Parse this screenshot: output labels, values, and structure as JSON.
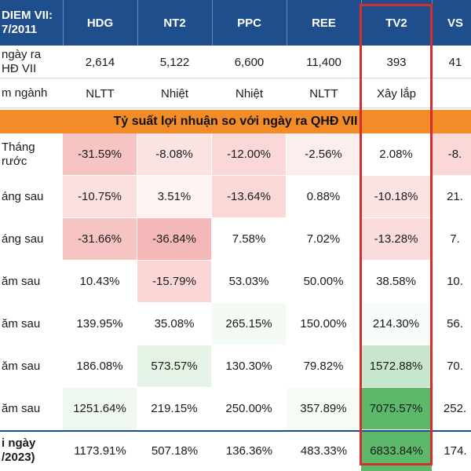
{
  "columns": {
    "header_label": [
      "DIEM VII:",
      "7/2011"
    ],
    "tickers": [
      "HDG",
      "NT2",
      "PPC",
      "REE",
      "TV2",
      "VS"
    ]
  },
  "info_rows": [
    {
      "label": [
        "ngày ra",
        "HĐ VII"
      ],
      "values": [
        "2,614",
        "5,122",
        "6,600",
        "11,400",
        "393",
        "41"
      ]
    },
    {
      "label": [
        "m ngành"
      ],
      "values": [
        "NLTT",
        "Nhiệt",
        "Nhiệt",
        "NLTT",
        "Xây lắp",
        ""
      ]
    }
  ],
  "banner": "Tỷ suất lợi nhuận so với ngày ra QHĐ VII",
  "return_rows": [
    {
      "label": [
        "Tháng",
        "rước"
      ],
      "values": [
        "-31.59%",
        "-8.08%",
        "-12.00%",
        "-2.56%",
        "2.08%",
        "-8."
      ],
      "colors": [
        "#f7c4c4",
        "#fce3e3",
        "#fbd8d8",
        "#fdeeee",
        "#ffffff",
        "#fbd8d8"
      ]
    },
    {
      "label": [
        "áng sau"
      ],
      "values": [
        "-10.75%",
        "3.51%",
        "-13.64%",
        "0.88%",
        "-10.18%",
        "21."
      ],
      "colors": [
        "#fce0e0",
        "#fff4f4",
        "#fbd8d8",
        "#ffffff",
        "#fce3e3",
        "#ffffff"
      ]
    },
    {
      "label": [
        "áng sau"
      ],
      "values": [
        "-31.66%",
        "-36.84%",
        "7.58%",
        "7.02%",
        "-13.28%",
        "7."
      ],
      "colors": [
        "#f7c4c4",
        "#f5b8b8",
        "#ffffff",
        "#ffffff",
        "#fbdcdc",
        "#ffffff"
      ]
    },
    {
      "label": [
        "ăm sau"
      ],
      "values": [
        "10.43%",
        "-15.79%",
        "53.03%",
        "50.00%",
        "38.58%",
        "10."
      ],
      "colors": [
        "#ffffff",
        "#fbd6d6",
        "#ffffff",
        "#ffffff",
        "#ffffff",
        "#ffffff"
      ]
    },
    {
      "label": [
        "ăm sau"
      ],
      "values": [
        "139.95%",
        "35.08%",
        "265.15%",
        "150.00%",
        "214.30%",
        "56."
      ],
      "colors": [
        "#ffffff",
        "#ffffff",
        "#f4fbf5",
        "#ffffff",
        "#f8fcf8",
        "#ffffff"
      ]
    },
    {
      "label": [
        "ăm sau"
      ],
      "values": [
        "186.08%",
        "573.57%",
        "130.30%",
        "79.82%",
        "1572.88%",
        "70."
      ],
      "colors": [
        "#ffffff",
        "#e4f3e6",
        "#ffffff",
        "#ffffff",
        "#c8e6cc",
        "#ffffff"
      ]
    },
    {
      "label": [
        "ăm sau"
      ],
      "values": [
        "1251.64%",
        "219.15%",
        "250.00%",
        "357.89%",
        "7075.57%",
        "252."
      ],
      "colors": [
        "#eef8ef",
        "#ffffff",
        "#ffffff",
        "#f6fbf6",
        "#5cb96a",
        "#ffffff"
      ]
    }
  ],
  "total_row": {
    "label": [
      "i ngày",
      "/2023)"
    ],
    "values": [
      "1173.91%",
      "507.18%",
      "136.36%",
      "483.33%",
      "6833.84%",
      "174."
    ],
    "colors": [
      "#ffffff",
      "#ffffff",
      "#ffffff",
      "#ffffff",
      "#5cb96a",
      "#ffffff"
    ]
  },
  "colors": {
    "header_bg": "#1f4e8c",
    "banner_bg": "#f28c28",
    "highlight_frame": "#d32f2f",
    "positive_strong": "#5cb96a",
    "negative": "#f7c4c4"
  }
}
